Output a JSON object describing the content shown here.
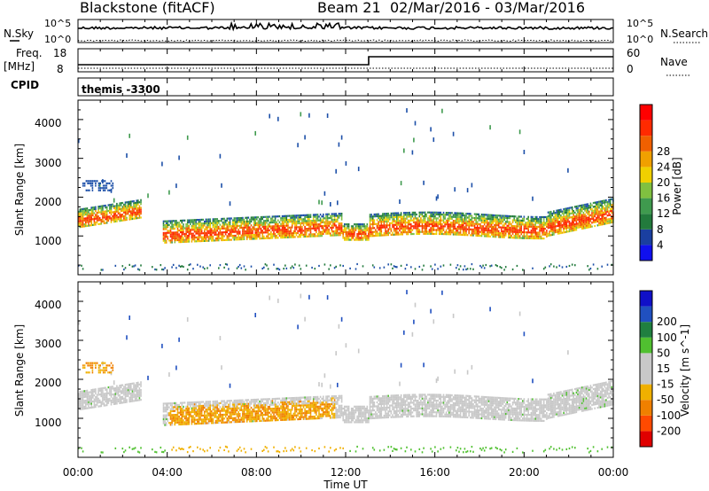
{
  "header": {
    "site": "Blackstone (fitACF)",
    "beam": "Beam 21",
    "dates": "02/Mar/2016 - 03/Mar/2016"
  },
  "status_panels": {
    "nsky_label": "N.Sky",
    "nsearch_label": "N.Search",
    "noise_ticks_left": [
      "10^5",
      "10^0"
    ],
    "noise_ticks_right": [
      "10^5",
      "10^0"
    ],
    "freq_label_1": "Freq.",
    "freq_label_2": "[MHz]",
    "freq_ticks": [
      "18",
      "8"
    ],
    "nave_ticks": [
      "60",
      "0"
    ],
    "nave_label": "Nave",
    "cpid_label": "CPID",
    "cpid_value": "themis -3300"
  },
  "colors": {
    "power": [
      "#1a1aff",
      "#1c4fa8",
      "#2c7a3a",
      "#4aa85a",
      "#b8b832",
      "#f0b000",
      "#f07000",
      "#f03000",
      "#ff0000"
    ],
    "velocity": [
      "#e00000",
      "#ff5a00",
      "#f0a000",
      "#c8c8c8",
      "#c8c8c8",
      "#50c030",
      "#208040",
      "#2050c0",
      "#1010c8"
    ]
  },
  "chart_data": [
    {
      "type": "heatmap",
      "title": "Power",
      "ylabel": "Slant Range [km]",
      "ylim": [
        0,
        4500
      ],
      "yticks": [
        1000,
        2000,
        3000,
        4000
      ],
      "xlim": [
        "00:00",
        "24:00"
      ],
      "colorbar_label": "Power [dB]",
      "colorbar_ticks": [
        "4",
        "8",
        "12",
        "16",
        "20",
        "24",
        "28"
      ],
      "bands": [
        {
          "time_h": [
            0.0,
            1.0,
            2.0,
            2.7
          ],
          "range_km": [
            1450,
            1500,
            1650,
            1700
          ],
          "level": "high"
        },
        {
          "time_h": [
            3.8,
            6.0,
            9.0,
            11.5
          ],
          "range_km": [
            1100,
            1100,
            1150,
            1200
          ],
          "level": "medium"
        },
        {
          "time_h": [
            13.0,
            16.0,
            19.0,
            24.0
          ],
          "range_km": [
            1300,
            1300,
            1300,
            1600
          ],
          "level": "high"
        }
      ]
    },
    {
      "type": "heatmap",
      "title": "Velocity",
      "ylabel": "Slant Range [km]",
      "ylim": [
        0,
        4500
      ],
      "yticks": [
        1000,
        2000,
        3000,
        4000
      ],
      "xlim": [
        "00:00",
        "24:00"
      ],
      "colorbar_label": "Velocity [m s^-1]",
      "colorbar_ticks": [
        "-200",
        "-100",
        "-50",
        "-15",
        "15",
        "50",
        "100",
        "200"
      ]
    }
  ],
  "xaxis": {
    "ticks": [
      "00:00",
      "04:00",
      "08:00",
      "12:00",
      "16:00",
      "20:00",
      "00:00"
    ],
    "label": "Time UT"
  }
}
